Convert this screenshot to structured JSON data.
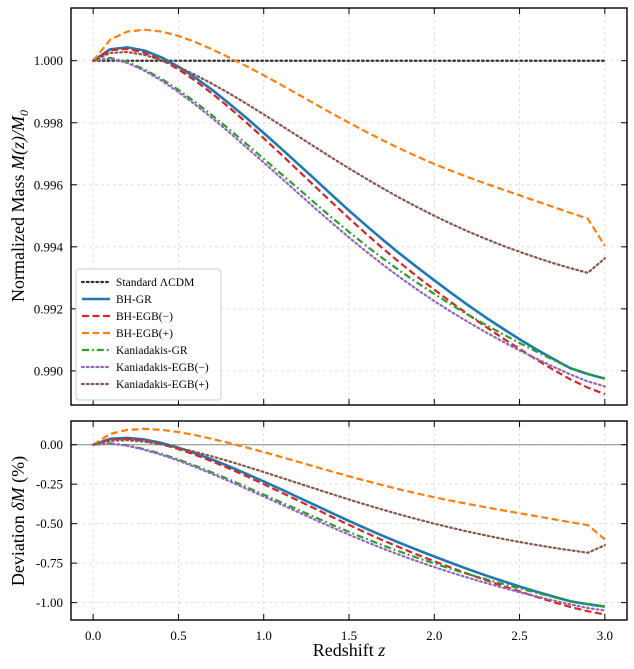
{
  "chart_data": [
    {
      "type": "line",
      "panel": "top",
      "title": "",
      "xlabel": "",
      "ylabel": "Normalized Mass M(z)/M_0",
      "ylabel_text": "Normalized Mass ",
      "ylabel_math": "M(z)/M",
      "ylabel_sub": "0",
      "xlim": [
        -0.13,
        3.13
      ],
      "ylim": [
        0.9889,
        1.0017
      ],
      "yticks": [
        0.99,
        0.992,
        0.994,
        0.996,
        0.998,
        1.0
      ],
      "ytick_labels": [
        "0.990",
        "0.992",
        "0.994",
        "0.996",
        "0.998",
        "1.000"
      ],
      "xticks": [
        0.0,
        0.5,
        1.0,
        1.5,
        2.0,
        2.5,
        3.0
      ],
      "grid": true,
      "legend_position": "lower-left",
      "x": [
        0,
        0.1,
        0.2,
        0.3,
        0.4,
        0.5,
        0.6,
        0.7,
        0.8,
        0.9,
        1.0,
        1.1,
        1.2,
        1.3,
        1.4,
        1.5,
        1.6,
        1.7,
        1.8,
        1.9,
        2.0,
        2.1,
        2.2,
        2.3,
        2.4,
        2.5,
        2.6,
        2.7,
        2.8,
        2.9,
        3.0
      ],
      "series": [
        {
          "name": "Standard ΛCDM",
          "color": "#333333",
          "style": "dotted",
          "values": [
            1.0,
            1.0,
            1.0,
            1.0,
            1.0,
            1.0,
            1.0,
            1.0,
            1.0,
            1.0,
            1.0,
            1.0,
            1.0,
            1.0,
            1.0,
            1.0,
            1.0,
            1.0,
            1.0,
            1.0,
            1.0,
            1.0,
            1.0,
            1.0,
            1.0,
            1.0,
            1.0,
            1.0,
            1.0,
            1.0,
            1.0
          ]
        },
        {
          "name": "BH-GR",
          "color": "#1f77b4",
          "style": "solid",
          "values": [
            1.0,
            1.00037,
            1.00043,
            1.00033,
            1.00011,
            0.99981,
            0.99945,
            0.99905,
            0.99861,
            0.99815,
            0.99767,
            0.99718,
            0.99668,
            0.99618,
            0.99567,
            0.99517,
            0.99469,
            0.99422,
            0.99377,
            0.99334,
            0.99292,
            0.99251,
            0.99211,
            0.99173,
            0.99137,
            0.99102,
            0.99069,
            0.99038,
            0.99008,
            0.9899,
            0.98975
          ]
        },
        {
          "name": "BH-EGB(−)",
          "color": "#d62728",
          "style": "dashed",
          "values": [
            1.0,
            1.00034,
            1.00038,
            1.00026,
            1.00003,
            0.99972,
            0.99935,
            0.99893,
            0.99848,
            0.998,
            0.9975,
            0.99699,
            0.99647,
            0.99595,
            0.99543,
            0.99492,
            0.99442,
            0.99394,
            0.99348,
            0.99304,
            0.99262,
            0.99221,
            0.99181,
            0.99143,
            0.99106,
            0.99071,
            0.99036,
            0.99003,
            0.98972,
            0.98946,
            0.98925
          ]
        },
        {
          "name": "BH-EGB(+)",
          "color": "#ff7f0e",
          "style": "dashed",
          "values": [
            1.0,
            1.00068,
            1.00094,
            1.001,
            1.00094,
            1.0008,
            1.0006,
            1.00036,
            1.0001,
            0.99982,
            0.99953,
            0.99923,
            0.99892,
            0.99861,
            0.9983,
            0.998,
            0.99771,
            0.99743,
            0.99716,
            0.99691,
            0.99667,
            0.99645,
            0.99624,
            0.99604,
            0.99585,
            0.99566,
            0.99547,
            0.99528,
            0.99509,
            0.99491,
            0.99403
          ]
        },
        {
          "name": "Kaniadakis-GR",
          "color": "#2ca02c",
          "style": "dashdot",
          "values": [
            1.0,
            1.00009,
            0.99996,
            0.99972,
            0.99942,
            0.99906,
            0.99866,
            0.99823,
            0.99778,
            0.99731,
            0.99684,
            0.99636,
            0.99589,
            0.99541,
            0.99494,
            0.99448,
            0.99404,
            0.99362,
            0.99322,
            0.99284,
            0.99248,
            0.99213,
            0.9918,
            0.99149,
            0.99119,
            0.9909,
            0.99062,
            0.99035,
            0.99009,
            0.9899,
            0.98975
          ]
        },
        {
          "name": "Kaniadakis-EGB(−)",
          "color": "#9467bd",
          "style": "dotted",
          "values": [
            1.0,
            1.00007,
            0.99993,
            0.99968,
            0.99936,
            0.99899,
            0.99858,
            0.99814,
            0.99768,
            0.9972,
            0.99672,
            0.99623,
            0.99574,
            0.99525,
            0.99477,
            0.9943,
            0.99385,
            0.99342,
            0.99301,
            0.99262,
            0.99225,
            0.9919,
            0.99157,
            0.99125,
            0.99095,
            0.99066,
            0.99039,
            0.99013,
            0.98988,
            0.98966,
            0.9895
          ]
        },
        {
          "name": "Kaniadakis-EGB(+)",
          "color": "#8c564b",
          "style": "dotted",
          "values": [
            1.0,
            1.00025,
            1.00028,
            1.00019,
            1.00002,
            0.9998,
            0.99954,
            0.99925,
            0.99894,
            0.99861,
            0.99827,
            0.99792,
            0.99757,
            0.99722,
            0.99687,
            0.99653,
            0.9962,
            0.99588,
            0.99557,
            0.99528,
            0.995,
            0.99474,
            0.99449,
            0.99426,
            0.99404,
            0.99384,
            0.99365,
            0.99347,
            0.99331,
            0.99316,
            0.99363
          ]
        }
      ]
    },
    {
      "type": "line",
      "panel": "bottom",
      "title": "",
      "xlabel": "Redshift z",
      "xlabel_text": "Redshift ",
      "xlabel_math": "z",
      "ylabel": "Deviation δM (%)",
      "ylabel_text": "Deviation ",
      "ylabel_math": "δM",
      "ylabel_tail": " (%)",
      "xlim": [
        -0.13,
        3.13
      ],
      "ylim": [
        -1.11,
        0.15
      ],
      "yticks": [
        0.0,
        -0.25,
        -0.5,
        -0.75,
        -1.0
      ],
      "ytick_labels": [
        "0.00",
        "-0.25",
        "-0.50",
        "-0.75",
        "-1.00"
      ],
      "xticks": [
        0.0,
        0.5,
        1.0,
        1.5,
        2.0,
        2.5,
        3.0
      ],
      "xtick_labels": [
        "0.0",
        "0.5",
        "1.0",
        "1.5",
        "2.0",
        "2.5",
        "3.0"
      ],
      "grid": true,
      "reference_line": 0.0,
      "x": [
        0,
        0.1,
        0.2,
        0.3,
        0.4,
        0.5,
        0.6,
        0.7,
        0.8,
        0.9,
        1.0,
        1.1,
        1.2,
        1.3,
        1.4,
        1.5,
        1.6,
        1.7,
        1.8,
        1.9,
        2.0,
        2.1,
        2.2,
        2.3,
        2.4,
        2.5,
        2.6,
        2.7,
        2.8,
        2.9,
        3.0
      ],
      "series": [
        {
          "name": "BH-GR",
          "color": "#1f77b4",
          "style": "solid",
          "values": [
            0.0,
            0.037,
            0.043,
            0.033,
            0.011,
            -0.019,
            -0.055,
            -0.095,
            -0.139,
            -0.185,
            -0.233,
            -0.282,
            -0.332,
            -0.382,
            -0.433,
            -0.483,
            -0.531,
            -0.578,
            -0.623,
            -0.666,
            -0.708,
            -0.749,
            -0.789,
            -0.827,
            -0.863,
            -0.898,
            -0.931,
            -0.962,
            -0.992,
            -1.01,
            -1.025
          ]
        },
        {
          "name": "BH-EGB(−)",
          "color": "#d62728",
          "style": "dashed",
          "values": [
            0.0,
            0.034,
            0.038,
            0.026,
            0.003,
            -0.028,
            -0.065,
            -0.107,
            -0.152,
            -0.2,
            -0.25,
            -0.301,
            -0.353,
            -0.405,
            -0.457,
            -0.508,
            -0.558,
            -0.606,
            -0.652,
            -0.696,
            -0.738,
            -0.779,
            -0.819,
            -0.857,
            -0.894,
            -0.929,
            -0.964,
            -0.997,
            -1.028,
            -1.054,
            -1.075
          ]
        },
        {
          "name": "BH-EGB(+)",
          "color": "#ff7f0e",
          "style": "dashed",
          "values": [
            0.0,
            0.068,
            0.094,
            0.1,
            0.094,
            0.08,
            0.06,
            0.036,
            0.01,
            -0.018,
            -0.047,
            -0.077,
            -0.108,
            -0.139,
            -0.17,
            -0.2,
            -0.229,
            -0.257,
            -0.284,
            -0.309,
            -0.333,
            -0.355,
            -0.376,
            -0.396,
            -0.415,
            -0.434,
            -0.453,
            -0.472,
            -0.491,
            -0.509,
            -0.6
          ]
        },
        {
          "name": "Kaniadakis-GR",
          "color": "#2ca02c",
          "style": "dashdot",
          "values": [
            0.0,
            0.009,
            -0.004,
            -0.028,
            -0.058,
            -0.094,
            -0.134,
            -0.177,
            -0.222,
            -0.269,
            -0.316,
            -0.364,
            -0.411,
            -0.459,
            -0.506,
            -0.552,
            -0.596,
            -0.638,
            -0.678,
            -0.716,
            -0.752,
            -0.787,
            -0.82,
            -0.851,
            -0.881,
            -0.91,
            -0.938,
            -0.965,
            -0.991,
            -1.01,
            -1.025
          ]
        },
        {
          "name": "Kaniadakis-EGB(−)",
          "color": "#9467bd",
          "style": "dotted",
          "values": [
            0.0,
            0.007,
            -0.007,
            -0.032,
            -0.064,
            -0.101,
            -0.142,
            -0.186,
            -0.232,
            -0.28,
            -0.328,
            -0.377,
            -0.426,
            -0.475,
            -0.523,
            -0.57,
            -0.615,
            -0.658,
            -0.699,
            -0.738,
            -0.775,
            -0.81,
            -0.843,
            -0.875,
            -0.905,
            -0.934,
            -0.961,
            -0.987,
            -1.012,
            -1.034,
            -1.05
          ]
        },
        {
          "name": "Kaniadakis-EGB(+)",
          "color": "#8c564b",
          "style": "dotted",
          "values": [
            0.0,
            0.025,
            0.028,
            0.019,
            0.002,
            -0.02,
            -0.046,
            -0.075,
            -0.106,
            -0.139,
            -0.173,
            -0.208,
            -0.243,
            -0.278,
            -0.313,
            -0.347,
            -0.38,
            -0.412,
            -0.443,
            -0.472,
            -0.5,
            -0.526,
            -0.551,
            -0.574,
            -0.596,
            -0.616,
            -0.635,
            -0.653,
            -0.669,
            -0.684,
            -0.637
          ]
        }
      ]
    }
  ]
}
